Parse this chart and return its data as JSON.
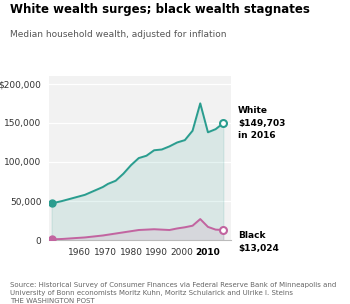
{
  "title": "White wealth surges; black wealth stagnates",
  "subtitle": "Median household wealth, adjusted for inflation",
  "source": "Source: Historical Survey of Consumer Finances via Federal Reserve Bank of Minneapolis and\nUniversity of Bonn economists Moritz Kuhn, Moritz Schularick and Ulrike I. Steins\nTHE WASHINGTON POST",
  "white_x": [
    1949,
    1953,
    1962,
    1969,
    1971,
    1974,
    1977,
    1980,
    1983,
    1986,
    1989,
    1992,
    1995,
    1998,
    2001,
    2004,
    2007,
    2010,
    2013,
    2016
  ],
  "white_y": [
    47000,
    50000,
    58000,
    68000,
    72000,
    76000,
    85000,
    96000,
    105000,
    108000,
    115000,
    116000,
    120000,
    125000,
    128000,
    140000,
    175000,
    138000,
    142000,
    149703
  ],
  "black_x": [
    1949,
    1953,
    1962,
    1969,
    1971,
    1974,
    1977,
    1980,
    1983,
    1986,
    1989,
    1992,
    1995,
    1998,
    2001,
    2004,
    2007,
    2010,
    2013,
    2016
  ],
  "black_y": [
    1000,
    1500,
    3500,
    6000,
    7000,
    8500,
    10000,
    11500,
    13000,
    13500,
    14000,
    13500,
    13000,
    15000,
    16500,
    18500,
    27000,
    17000,
    13500,
    13024
  ],
  "white_color": "#2a9d8f",
  "black_color": "#c264a0",
  "ylim": [
    0,
    210000
  ],
  "xlim": [
    1948,
    2019
  ],
  "yticks": [
    0,
    50000,
    100000,
    150000,
    200000
  ],
  "ytick_labels": [
    "0",
    "50,000",
    "100,000",
    "150,000",
    "$200,000"
  ],
  "xticks": [
    1960,
    1970,
    1980,
    1990,
    2000,
    2010
  ],
  "fill_alpha": 0.12,
  "plot_bg": "#f2f2f2"
}
